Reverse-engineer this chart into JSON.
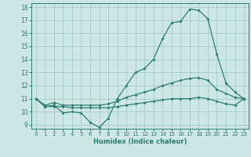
{
  "xlabel": "Humidex (Indice chaleur)",
  "bg_color": "#cde8e4",
  "grid_color": "#a8d0cc",
  "line_color": "#2d7c72",
  "xlim": [
    -0.5,
    23.5
  ],
  "ylim": [
    8.7,
    18.3
  ],
  "x": [
    0,
    1,
    2,
    3,
    4,
    5,
    6,
    7,
    8,
    9,
    10,
    11,
    12,
    13,
    14,
    15,
    16,
    17,
    18,
    19,
    20,
    21,
    22,
    23
  ],
  "line_main": [
    11.0,
    10.4,
    10.5,
    9.9,
    10.0,
    9.9,
    9.2,
    8.8,
    9.5,
    11.0,
    12.0,
    13.0,
    13.3,
    14.0,
    15.6,
    16.8,
    16.9,
    17.85,
    17.75,
    17.1,
    14.4,
    12.2,
    11.5,
    11.0
  ],
  "line_upper": [
    11.0,
    10.5,
    10.7,
    10.5,
    10.5,
    10.5,
    10.5,
    10.5,
    10.6,
    10.8,
    11.1,
    11.3,
    11.5,
    11.7,
    12.0,
    12.2,
    12.4,
    12.55,
    12.6,
    12.4,
    11.7,
    11.4,
    11.1,
    11.0
  ],
  "line_lower": [
    11.0,
    10.4,
    10.4,
    10.4,
    10.3,
    10.3,
    10.3,
    10.3,
    10.3,
    10.4,
    10.5,
    10.6,
    10.7,
    10.8,
    10.9,
    11.0,
    11.0,
    11.0,
    11.1,
    11.0,
    10.8,
    10.6,
    10.5,
    11.0
  ],
  "yticks": [
    9,
    10,
    11,
    12,
    13,
    14,
    15,
    16,
    17,
    18
  ],
  "xticks": [
    0,
    1,
    2,
    3,
    4,
    5,
    6,
    7,
    8,
    9,
    10,
    11,
    12,
    13,
    14,
    15,
    16,
    17,
    18,
    19,
    20,
    21,
    22,
    23
  ]
}
